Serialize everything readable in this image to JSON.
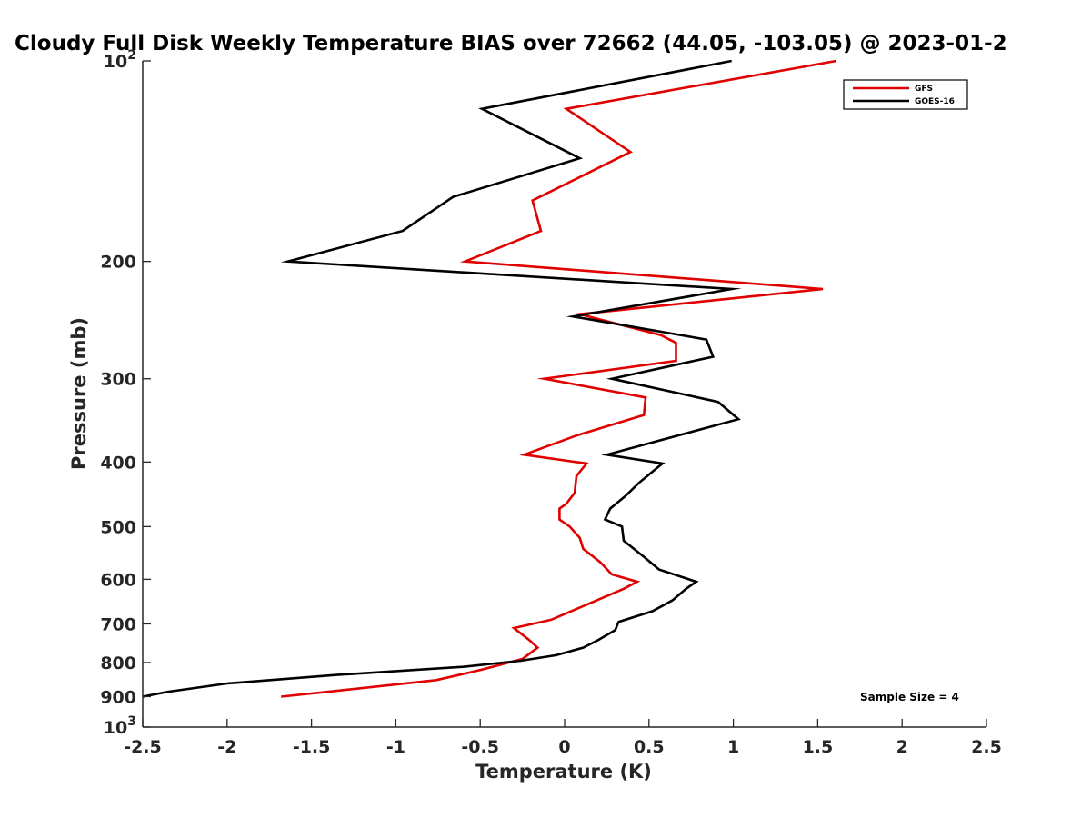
{
  "chart_data": {
    "type": "line",
    "title": "Cloudy Full Disk Weekly Temperature BIAS over 72662 (44.05, -103.05) @ 2023-01-2",
    "xlabel": "Temperature (K)",
    "ylabel": "Pressure (mb)",
    "xlim": [
      -2.5,
      2.5
    ],
    "ylim": [
      100,
      1000
    ],
    "y_scale": "log",
    "y_reversed": true,
    "x_ticks": [
      -2.5,
      -2,
      -1.5,
      -1,
      -0.5,
      0,
      0.5,
      1,
      1.5,
      2,
      2.5
    ],
    "x_tick_labels": [
      "-2.5",
      "-2",
      "-1.5",
      "-1",
      "-0.5",
      "0",
      "0.5",
      "1",
      "1.5",
      "2",
      "2.5"
    ],
    "y_ticks": [
      100,
      200,
      300,
      400,
      500,
      600,
      700,
      800,
      900,
      1000
    ],
    "y_tick_labels": [
      {
        "base": "10",
        "exp": "2"
      },
      {
        "base": "200",
        "exp": ""
      },
      {
        "base": "300",
        "exp": ""
      },
      {
        "base": "400",
        "exp": ""
      },
      {
        "base": "500",
        "exp": ""
      },
      {
        "base": "600",
        "exp": ""
      },
      {
        "base": "700",
        "exp": ""
      },
      {
        "base": "800",
        "exp": ""
      },
      {
        "base": "900",
        "exp": ""
      },
      {
        "base": "10",
        "exp": "3"
      }
    ],
    "grid": false,
    "legend_position": "top-right",
    "annotation": "Sample Size = 4",
    "series": [
      {
        "name": "GFS",
        "color": "#e00000",
        "points": [
          [
            1.61,
            100
          ],
          [
            0.01,
            118
          ],
          [
            0.39,
            137
          ],
          [
            -0.19,
            162
          ],
          [
            -0.14,
            180
          ],
          [
            -0.59,
            200
          ],
          [
            1.53,
            220
          ],
          [
            0.09,
            240
          ],
          [
            0.57,
            258
          ],
          [
            0.66,
            265
          ],
          [
            0.66,
            282
          ],
          [
            -0.12,
            300
          ],
          [
            0.48,
            320
          ],
          [
            0.47,
            340
          ],
          [
            0.07,
            365
          ],
          [
            -0.24,
            390
          ],
          [
            0.13,
            402
          ],
          [
            0.07,
            420
          ],
          [
            0.06,
            445
          ],
          [
            0.01,
            462
          ],
          [
            -0.03,
            470
          ],
          [
            -0.03,
            488
          ],
          [
            0.03,
            500
          ],
          [
            0.09,
            520
          ],
          [
            0.11,
            540
          ],
          [
            0.21,
            565
          ],
          [
            0.28,
            590
          ],
          [
            0.43,
            605
          ],
          [
            0.35,
            620
          ],
          [
            0.13,
            655
          ],
          [
            -0.08,
            690
          ],
          [
            -0.3,
            710
          ],
          [
            -0.21,
            740
          ],
          [
            -0.16,
            760
          ],
          [
            -0.25,
            790
          ],
          [
            -0.49,
            820
          ],
          [
            -0.76,
            850
          ],
          [
            -1.4,
            885
          ],
          [
            -1.68,
            900
          ]
        ]
      },
      {
        "name": "GOES-16",
        "color": "#000000",
        "points": [
          [
            0.99,
            100
          ],
          [
            -0.49,
            118
          ],
          [
            0.09,
            140
          ],
          [
            -0.66,
            160
          ],
          [
            -0.96,
            180
          ],
          [
            -1.64,
            200
          ],
          [
            0.99,
            220
          ],
          [
            0.05,
            242
          ],
          [
            0.84,
            262
          ],
          [
            0.88,
            278
          ],
          [
            0.28,
            300
          ],
          [
            0.91,
            325
          ],
          [
            1.03,
            345
          ],
          [
            0.25,
            390
          ],
          [
            0.58,
            402
          ],
          [
            0.44,
            430
          ],
          [
            0.36,
            450
          ],
          [
            0.27,
            470
          ],
          [
            0.24,
            488
          ],
          [
            0.34,
            500
          ],
          [
            0.35,
            525
          ],
          [
            0.47,
            555
          ],
          [
            0.56,
            580
          ],
          [
            0.78,
            605
          ],
          [
            0.72,
            620
          ],
          [
            0.64,
            645
          ],
          [
            0.52,
            670
          ],
          [
            0.32,
            695
          ],
          [
            0.3,
            715
          ],
          [
            0.2,
            740
          ],
          [
            0.11,
            760
          ],
          [
            -0.05,
            780
          ],
          [
            -0.26,
            795
          ],
          [
            -0.6,
            812
          ],
          [
            -1.35,
            835
          ],
          [
            -2.0,
            860
          ],
          [
            -2.35,
            885
          ],
          [
            -2.5,
            900
          ]
        ]
      }
    ]
  }
}
